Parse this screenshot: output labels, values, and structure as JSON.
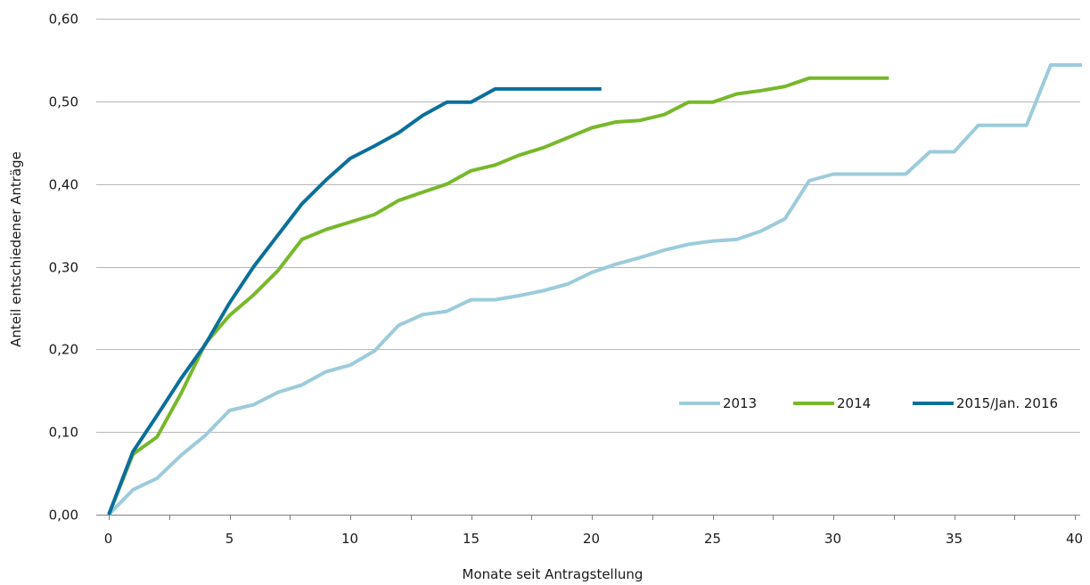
{
  "chart_data": {
    "type": "line",
    "title": "",
    "xlabel": "Monate seit Antragstellung",
    "ylabel": "Anteil entschiedener  Anträge",
    "xlim": [
      0,
      40.5
    ],
    "ylim": [
      0,
      0.6
    ],
    "x_ticks": [
      0,
      5,
      10,
      15,
      20,
      25,
      30,
      35,
      40
    ],
    "x_tick_labels": [
      "0",
      "5",
      "10",
      "15",
      "20",
      "25",
      "30",
      "35",
      "40"
    ],
    "y_ticks": [
      0,
      0.1,
      0.2,
      0.3,
      0.4,
      0.5,
      0.6
    ],
    "y_tick_labels": [
      "0,00",
      "0,10",
      "0,20",
      "0,30",
      "0,40",
      "0,50",
      "0,60"
    ],
    "grid": "horizontal",
    "legend_position": "right, inside plot",
    "series": [
      {
        "name": "2013",
        "color": "#9ccbdc",
        "points": [
          [
            0,
            0
          ],
          [
            1,
            0.03
          ],
          [
            2,
            0.044
          ],
          [
            3,
            0.072
          ],
          [
            4,
            0.096
          ],
          [
            5,
            0.126
          ],
          [
            6,
            0.133
          ],
          [
            7,
            0.148
          ],
          [
            8,
            0.157
          ],
          [
            9,
            0.173
          ],
          [
            10,
            0.181
          ],
          [
            11,
            0.198
          ],
          [
            12,
            0.229
          ],
          [
            13,
            0.242
          ],
          [
            14,
            0.246
          ],
          [
            15,
            0.26
          ],
          [
            16,
            0.26
          ],
          [
            17,
            0.265
          ],
          [
            18,
            0.271
          ],
          [
            19,
            0.279
          ],
          [
            20,
            0.293
          ],
          [
            21,
            0.303
          ],
          [
            22,
            0.311
          ],
          [
            23,
            0.32
          ],
          [
            24,
            0.327
          ],
          [
            25,
            0.331
          ],
          [
            26,
            0.333
          ],
          [
            27,
            0.343
          ],
          [
            28,
            0.358
          ],
          [
            29,
            0.404
          ],
          [
            30,
            0.412
          ],
          [
            31,
            0.412
          ],
          [
            32,
            0.412
          ],
          [
            33,
            0.412
          ],
          [
            34,
            0.439
          ],
          [
            35,
            0.439
          ],
          [
            36,
            0.471
          ],
          [
            37,
            0.471
          ],
          [
            38,
            0.471
          ],
          [
            39,
            0.544
          ],
          [
            40.3,
            0.544
          ]
        ]
      },
      {
        "name": "2014",
        "color": "#77b82a",
        "points": [
          [
            0,
            0
          ],
          [
            1,
            0.073
          ],
          [
            2,
            0.094
          ],
          [
            3,
            0.147
          ],
          [
            4,
            0.207
          ],
          [
            5,
            0.241
          ],
          [
            6,
            0.266
          ],
          [
            7,
            0.295
          ],
          [
            8,
            0.333
          ],
          [
            9,
            0.345
          ],
          [
            10,
            0.354
          ],
          [
            11,
            0.363
          ],
          [
            12,
            0.38
          ],
          [
            13,
            0.39
          ],
          [
            14,
            0.4
          ],
          [
            15,
            0.416
          ],
          [
            16,
            0.423
          ],
          [
            17,
            0.435
          ],
          [
            18,
            0.444
          ],
          [
            19,
            0.456
          ],
          [
            20,
            0.468
          ],
          [
            21,
            0.475
          ],
          [
            22,
            0.477
          ],
          [
            23,
            0.484
          ],
          [
            24,
            0.499
          ],
          [
            25,
            0.499
          ],
          [
            26,
            0.509
          ],
          [
            27,
            0.513
          ],
          [
            28,
            0.518
          ],
          [
            29,
            0.528
          ],
          [
            32.3,
            0.528
          ]
        ]
      },
      {
        "name": "2015/Jan. 2016",
        "color": "#0b6f9b",
        "points": [
          [
            0,
            0
          ],
          [
            1,
            0.076
          ],
          [
            2,
            0.12
          ],
          [
            3,
            0.165
          ],
          [
            4,
            0.206
          ],
          [
            5,
            0.256
          ],
          [
            6,
            0.3
          ],
          [
            7,
            0.338
          ],
          [
            8,
            0.376
          ],
          [
            9,
            0.405
          ],
          [
            10,
            0.431
          ],
          [
            11,
            0.446
          ],
          [
            12,
            0.462
          ],
          [
            13,
            0.483
          ],
          [
            14,
            0.499
          ],
          [
            15,
            0.499
          ],
          [
            16,
            0.515
          ],
          [
            17,
            0.515
          ],
          [
            18,
            0.515
          ],
          [
            19,
            0.515
          ],
          [
            20.4,
            0.515
          ]
        ]
      }
    ]
  }
}
